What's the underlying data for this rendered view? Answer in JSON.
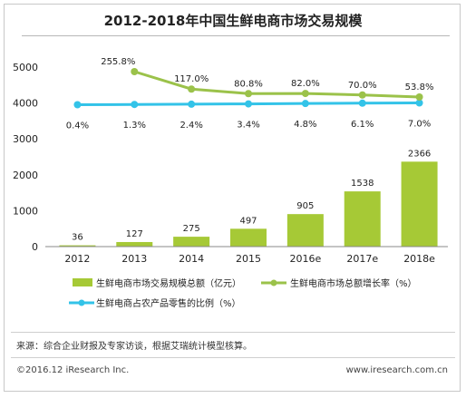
{
  "title": "2012-2018年中国生鲜电商市场交易规模",
  "source": "来源：综合企业财报及专家访谈，根据艾瑞统计模型核算。",
  "copyright": "©2016.12 iResearch Inc.",
  "website": "www.iresearch.com.cn",
  "chart_data": {
    "type": "bar",
    "categories": [
      "2012",
      "2013",
      "2014",
      "2015",
      "2016e",
      "2017e",
      "2018e"
    ],
    "ylim": [
      0,
      5000
    ],
    "yticks": [
      "0",
      "1000",
      "2000",
      "3000",
      "4000",
      "5000"
    ],
    "grid": false,
    "legend_position": "bottom",
    "series": [
      {
        "name": "生鲜电商市场交易规模总额（亿元）",
        "kind": "bar",
        "color": "#a6c936",
        "values": [
          36,
          127,
          275,
          497,
          905,
          1538,
          2366
        ],
        "labels": [
          "36",
          "127",
          "275",
          "497",
          "905",
          "1538",
          "2366"
        ]
      },
      {
        "name": "生鲜电商市场总额增长率（%）",
        "kind": "line",
        "color": "#9bc24a",
        "values": [
          null,
          255.8,
          117.0,
          80.8,
          82.0,
          70.0,
          53.8
        ],
        "labels": [
          "",
          "255.8%",
          "117.0%",
          "80.8%",
          "82.0%",
          "70.0%",
          "53.8%"
        ]
      },
      {
        "name": "生鲜电商占农产品零售的比例（%）",
        "kind": "line",
        "color": "#33c3e8",
        "values": [
          0.4,
          1.3,
          2.4,
          3.4,
          4.8,
          6.1,
          7.0
        ],
        "labels": [
          "0.4%",
          "1.3%",
          "2.4%",
          "3.4%",
          "4.8%",
          "6.1%",
          "7.0%"
        ]
      }
    ]
  }
}
